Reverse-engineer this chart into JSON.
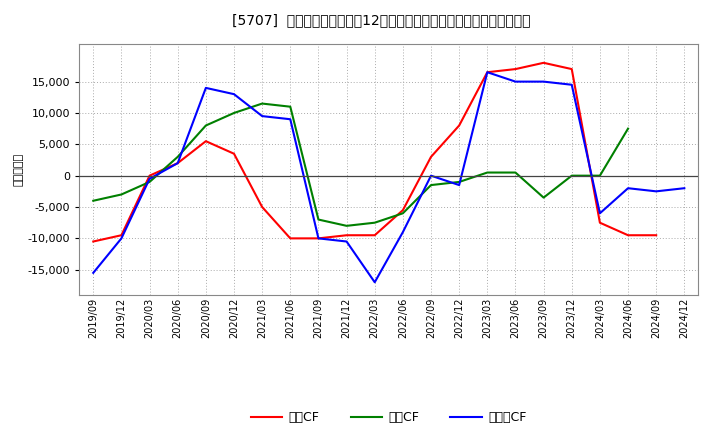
{
  "title": "[5707]  キャッシュフローの12か月移動合計の対前年同期増減額の推移",
  "ylabel": "（百万円）",
  "background_color": "#ffffff",
  "plot_bg_color": "#ffffff",
  "grid_color": "#aaaaaa",
  "xlabels": [
    "2019/09",
    "2019/12",
    "2020/03",
    "2020/06",
    "2020/09",
    "2020/12",
    "2021/03",
    "2021/06",
    "2021/09",
    "2021/12",
    "2022/03",
    "2022/06",
    "2022/09",
    "2022/12",
    "2023/03",
    "2023/06",
    "2023/09",
    "2023/12",
    "2024/03",
    "2024/06",
    "2024/09",
    "2024/12"
  ],
  "eigyo_cf": [
    -10500,
    -9500,
    0,
    2000,
    5500,
    3500,
    -5000,
    -10000,
    -10000,
    -9500,
    -9500,
    -5500,
    3000,
    8000,
    16500,
    17000,
    18000,
    17000,
    -7500,
    -9500,
    -9500,
    null
  ],
  "toshi_cf": [
    -4000,
    -3000,
    -1000,
    3000,
    8000,
    10000,
    11500,
    11000,
    -7000,
    -8000,
    -7500,
    -6000,
    -1500,
    -1000,
    500,
    500,
    -3500,
    0,
    0,
    7500,
    null,
    null
  ],
  "free_cf": [
    -15500,
    -10000,
    -500,
    2000,
    14000,
    13000,
    9500,
    9000,
    -10000,
    -10500,
    -17000,
    -9000,
    0,
    -1500,
    16500,
    15000,
    15000,
    14500,
    -6000,
    -2000,
    -2500,
    -2000
  ],
  "eigyo_color": "#ff0000",
  "toshi_color": "#008000",
  "free_color": "#0000ff",
  "ylim": [
    -19000,
    21000
  ],
  "yticks": [
    -15000,
    -10000,
    -5000,
    0,
    5000,
    10000,
    15000
  ],
  "legend_labels": [
    "営業CF",
    "投資CF",
    "フリーCF"
  ]
}
